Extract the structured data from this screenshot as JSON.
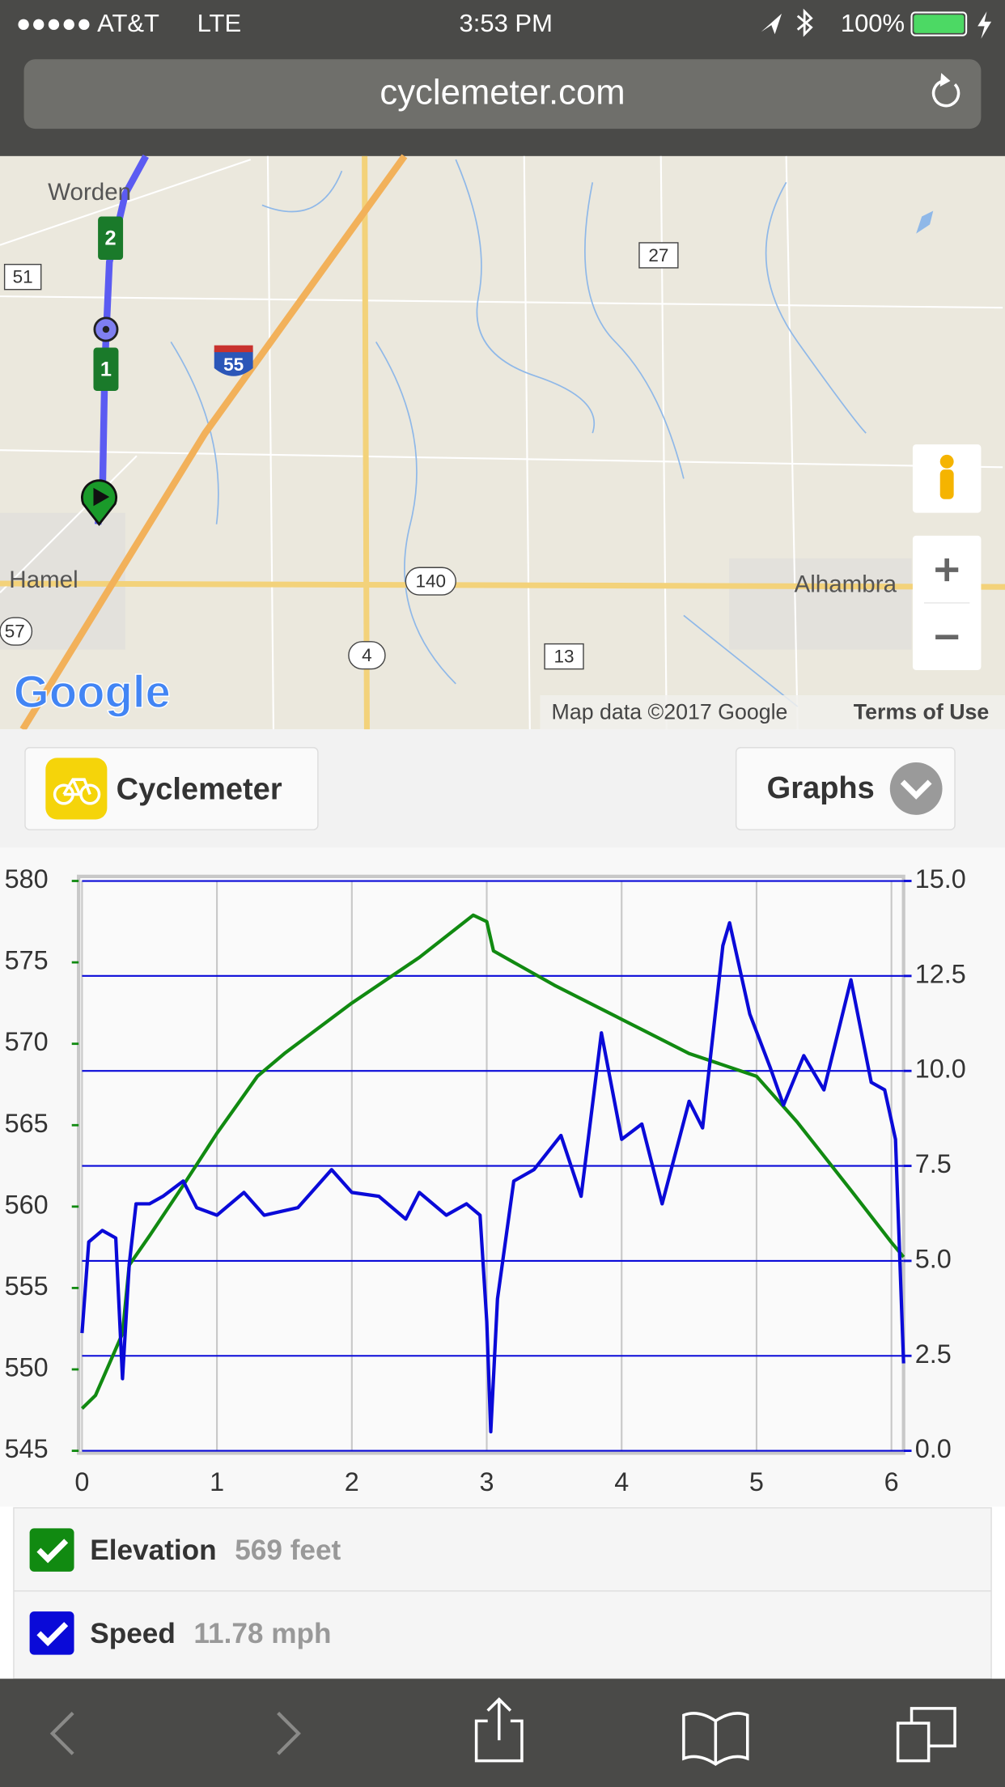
{
  "status_bar": {
    "carrier": "●●●●● AT&T",
    "network": "LTE",
    "time": "3:53 PM",
    "battery": "100%"
  },
  "browser": {
    "url": "cyclemeter.com"
  },
  "map": {
    "labels": [
      "Worden",
      "51",
      "27",
      "55",
      "Hamel",
      "140",
      "Alhambra",
      "57",
      "4",
      "13"
    ],
    "route_markers": [
      "2",
      "1"
    ],
    "logo": "Google",
    "attribution": "Map data ©2017 Google",
    "terms": "Terms of Use"
  },
  "toolbar": {
    "app": "Cyclemeter",
    "graphs": "Graphs"
  },
  "chart_data": {
    "type": "line",
    "xlim": [
      0,
      6.09
    ],
    "xticks": [
      0,
      1,
      2,
      3,
      4,
      5,
      6
    ],
    "ylim": [
      545,
      580
    ],
    "yticks": [
      545,
      550,
      555,
      560,
      565,
      570,
      575,
      580
    ],
    "y2lim": [
      0,
      15
    ],
    "y2ticks": [
      {
        "value": 0,
        "label": "0.0"
      },
      {
        "value": 2.5,
        "label": "2.5"
      },
      {
        "value": 5,
        "label": "5.0"
      },
      {
        "value": 7.5,
        "label": "7.5"
      },
      {
        "value": 10,
        "label": "10.0"
      },
      {
        "value": 12.5,
        "label": "12.5"
      },
      {
        "value": 15,
        "label": "15.0"
      }
    ],
    "grid": true,
    "series": [
      {
        "name": "Elevation",
        "color": "#118a11",
        "current": "569 feet",
        "x": [
          0,
          0.1,
          0.3,
          0.35,
          0.5,
          0.75,
          1.0,
          1.3,
          1.5,
          2.0,
          2.5,
          2.9,
          3.0,
          3.05,
          3.5,
          4.0,
          4.5,
          5.0,
          5.3,
          5.7,
          6.0,
          6.09
        ],
        "values": [
          547.6,
          548.4,
          552.2,
          556.4,
          558.2,
          561.3,
          564.5,
          568,
          569.4,
          572.5,
          575.3,
          577.9,
          577.5,
          575.7,
          573.6,
          571.5,
          569.4,
          568,
          565.2,
          561,
          557.8,
          556.9
        ]
      },
      {
        "name": "Speed",
        "color": "#0a0ad8",
        "current": "11.78 mph",
        "axis": "y2",
        "x": [
          0,
          0.05,
          0.15,
          0.25,
          0.3,
          0.35,
          0.4,
          0.5,
          0.6,
          0.75,
          0.85,
          1.0,
          1.2,
          1.35,
          1.6,
          1.85,
          2.0,
          2.2,
          2.4,
          2.5,
          2.7,
          2.85,
          2.95,
          3.0,
          3.03,
          3.08,
          3.2,
          3.35,
          3.55,
          3.7,
          3.85,
          4.0,
          4.15,
          4.3,
          4.5,
          4.6,
          4.75,
          4.8,
          4.95,
          5.1,
          5.2,
          5.35,
          5.5,
          5.7,
          5.85,
          5.95,
          6.03,
          6.09
        ],
        "values": [
          3.1,
          5.5,
          5.8,
          5.6,
          1.9,
          4.9,
          6.5,
          6.5,
          6.7,
          7.1,
          6.4,
          6.2,
          6.8,
          6.2,
          6.4,
          7.4,
          6.8,
          6.7,
          6.1,
          6.8,
          6.2,
          6.5,
          6.2,
          3.4,
          0.5,
          4.0,
          7.1,
          7.4,
          8.3,
          6.7,
          11.0,
          8.2,
          8.6,
          6.5,
          9.2,
          8.5,
          13.3,
          13.9,
          11.5,
          10.1,
          9.1,
          10.4,
          9.5,
          12.4,
          9.7,
          9.5,
          8.2,
          2.3
        ]
      }
    ]
  }
}
